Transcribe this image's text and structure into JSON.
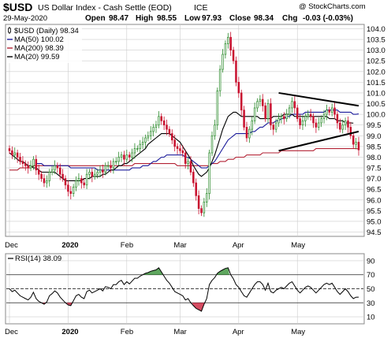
{
  "header": {
    "symbol": "$USD",
    "name": "US Dollar Index - Cash Settle (EOD)",
    "exchange": "ICE",
    "watermark": "@ StockCharts.com",
    "date": "29-May-2020",
    "open_label": "Open",
    "open_value": "98.47",
    "high_label": "High",
    "high_value": "98.55",
    "low_label": "Low",
    "low_value": "97.93",
    "close_label": "Close",
    "close_value": "98.34",
    "chg_label": "Chg",
    "chg_value": "-0.03 (-0.03%)"
  },
  "legend": [
    {
      "text": "$USD (Daily) 98.34",
      "color": "#000000",
      "icon": "candle-icon"
    },
    {
      "text": "MA(50) 100.02",
      "color": "#1a1a9a",
      "icon": "line-icon"
    },
    {
      "text": "MA(200) 98.39",
      "color": "#b22234",
      "icon": "line-icon"
    },
    {
      "text": "MA(20) 99.59",
      "color": "#000000",
      "icon": "line-icon"
    }
  ],
  "rsi_legend": "RSI(14) 38.09",
  "colors": {
    "up": "#2a8a2a",
    "down": "#c8102e",
    "ma50": "#1a1a9a",
    "ma200": "#b22234",
    "ma20": "#000000",
    "rsi_fill_over": "#2a8a2a",
    "rsi_fill_under": "#c8102e",
    "grid": "#cccccc"
  },
  "chart_data": [
    {
      "type": "candlestick",
      "title": "$USD US Dollar Index - Cash Settle (EOD) ICE",
      "x_tick_labels": [
        "Dec",
        "2020",
        "Feb",
        "Mar",
        "Apr",
        "May"
      ],
      "y_tick_labels": [
        "104.0",
        "103.5",
        "103.0",
        "102.5",
        "102.0",
        "101.5",
        "101.0",
        "100.5",
        "100.0",
        "99.5",
        "99.0",
        "98.5",
        "98.0",
        "97.5",
        "97.0",
        "96.5",
        "96.0",
        "95.5",
        "95.0",
        "94.5"
      ],
      "ylim": [
        94.3,
        104.2
      ],
      "grid": true,
      "series": [
        {
          "name": "$USD (Daily)",
          "kind": "candles",
          "close": [
            98.3,
            98.1,
            98.2,
            98.0,
            97.8,
            97.7,
            97.6,
            97.5,
            97.6,
            97.9,
            97.4,
            97.2,
            97.0,
            96.8,
            96.9,
            97.3,
            97.4,
            97.6,
            97.5,
            97.2,
            97.0,
            96.7,
            96.4,
            96.3,
            96.6,
            96.9,
            97.0,
            96.8,
            96.7,
            97.2,
            97.3,
            97.1,
            97.2,
            97.3,
            97.4,
            97.3,
            97.6,
            97.6,
            97.5,
            97.8,
            97.8,
            98.0,
            98.1,
            97.9,
            98.1,
            98.0,
            98.2,
            98.4,
            98.4,
            98.6,
            98.7,
            98.9,
            99.0,
            99.2,
            99.4,
            99.5,
            99.9,
            99.7,
            99.5,
            99.3,
            99.1,
            98.8,
            98.5,
            98.4,
            98.3,
            98.2,
            97.7,
            97.8,
            97.3,
            96.8,
            96.2,
            95.6,
            95.4,
            95.9,
            96.3,
            98.2,
            99.0,
            99.5,
            101.1,
            102.1,
            102.8,
            103.3,
            103.6,
            103.0,
            102.5,
            101.5,
            101.0,
            100.2,
            99.4,
            98.9,
            99.3,
            99.7,
            100.3,
            100.6,
            100.7,
            100.4,
            99.8,
            100.5,
            99.5,
            99.3,
            99.6,
            99.8,
            99.9,
            99.8,
            100.0,
            100.3,
            100.6,
            100.3,
            99.8,
            99.5,
            99.7,
            99.9,
            100.0,
            99.9,
            99.6,
            99.4,
            99.6,
            99.8,
            100.0,
            100.2,
            100.1,
            100.3,
            100.0,
            99.6,
            99.3,
            99.5,
            99.7,
            99.4,
            99.0,
            98.6,
            98.7,
            98.34
          ]
        },
        {
          "name": "MA(50)",
          "kind": "line",
          "color": "#1a1a9a",
          "values": [
            null,
            null,
            null,
            null,
            null,
            null,
            null,
            null,
            null,
            null,
            97.7,
            97.7,
            97.7,
            97.6,
            97.6,
            97.6,
            97.6,
            97.6,
            97.6,
            97.6,
            97.6,
            97.6,
            97.6,
            97.5,
            97.5,
            97.5,
            97.5,
            97.5,
            97.5,
            97.5,
            97.5,
            97.5,
            97.5,
            97.4,
            97.4,
            97.4,
            97.4,
            97.4,
            97.4,
            97.4,
            97.4,
            97.4,
            97.4,
            97.4,
            97.4,
            97.4,
            97.5,
            97.5,
            97.5,
            97.5,
            97.6,
            97.6,
            97.6,
            97.7,
            97.8,
            97.8,
            97.9,
            98.0,
            98.0,
            98.1,
            98.1,
            98.1,
            98.1,
            98.1,
            98.1,
            98.1,
            98.0,
            98.0,
            97.9,
            97.8,
            97.7,
            97.6,
            97.5,
            97.5,
            97.5,
            97.6,
            97.7,
            97.8,
            98.0,
            98.2,
            98.4,
            98.6,
            98.8,
            98.9,
            99.0,
            99.1,
            99.1,
            99.1,
            99.1,
            99.1,
            99.1,
            99.2,
            99.2,
            99.3,
            99.4,
            99.4,
            99.5,
            99.6,
            99.6,
            99.6,
            99.7,
            99.7,
            99.8,
            99.8,
            99.9,
            99.9,
            100.0,
            100.0,
            100.0,
            100.0,
            100.0,
            100.1,
            100.1,
            100.1,
            100.1,
            100.1,
            100.1,
            100.1,
            100.1,
            100.2,
            100.2,
            100.2,
            100.2,
            100.2,
            100.1,
            100.1,
            100.1,
            100.1,
            100.1,
            100.0,
            100.0,
            100.02
          ]
        },
        {
          "name": "MA(200)",
          "kind": "line",
          "color": "#b22234",
          "values": [
            97.4,
            97.4,
            97.4,
            97.4,
            97.5,
            97.5,
            97.5,
            97.5,
            97.5,
            97.6,
            97.6,
            97.6,
            97.6,
            97.6,
            97.6,
            97.6,
            97.6,
            97.6,
            97.6,
            97.6,
            97.6,
            97.6,
            97.6,
            97.6,
            97.6,
            97.6,
            97.6,
            97.6,
            97.6,
            97.6,
            97.6,
            97.6,
            97.6,
            97.6,
            97.6,
            97.6,
            97.6,
            97.6,
            97.6,
            97.6,
            97.6,
            97.6,
            97.6,
            97.6,
            97.6,
            97.6,
            97.6,
            97.7,
            97.7,
            97.7,
            97.7,
            97.7,
            97.7,
            97.7,
            97.7,
            97.7,
            97.7,
            97.7,
            97.7,
            97.7,
            97.7,
            97.7,
            97.7,
            97.6,
            97.6,
            97.6,
            97.6,
            97.6,
            97.6,
            97.6,
            97.6,
            97.6,
            97.6,
            97.6,
            97.6,
            97.6,
            97.7,
            97.7,
            97.7,
            97.8,
            97.8,
            97.8,
            97.9,
            97.9,
            97.9,
            98.0,
            98.0,
            98.0,
            98.0,
            98.1,
            98.1,
            98.1,
            98.1,
            98.1,
            98.1,
            98.2,
            98.2,
            98.2,
            98.2,
            98.2,
            98.2,
            98.2,
            98.3,
            98.3,
            98.3,
            98.3,
            98.3,
            98.3,
            98.3,
            98.3,
            98.3,
            98.3,
            98.3,
            98.3,
            98.3,
            98.4,
            98.4,
            98.4,
            98.4,
            98.4,
            98.4,
            98.4,
            98.4,
            98.4,
            98.4,
            98.4,
            98.4,
            98.4,
            98.4,
            98.4,
            98.4,
            98.39
          ]
        },
        {
          "name": "MA(20)",
          "kind": "line",
          "color": "#000000",
          "values": [
            98.2,
            98.1,
            98.0,
            97.9,
            97.8,
            97.8,
            97.7,
            97.6,
            97.6,
            97.5,
            97.5,
            97.4,
            97.3,
            97.3,
            97.3,
            97.3,
            97.3,
            97.3,
            97.2,
            97.1,
            97.0,
            96.9,
            96.9,
            96.9,
            96.9,
            96.9,
            96.9,
            96.9,
            97.0,
            97.0,
            97.0,
            97.1,
            97.1,
            97.1,
            97.1,
            97.2,
            97.2,
            97.3,
            97.4,
            97.4,
            97.5,
            97.6,
            97.6,
            97.7,
            97.7,
            97.8,
            97.9,
            98.0,
            98.1,
            98.2,
            98.3,
            98.4,
            98.6,
            98.7,
            98.8,
            98.9,
            99.0,
            99.1,
            99.1,
            99.1,
            99.1,
            99.0,
            98.9,
            98.8,
            98.7,
            98.5,
            98.3,
            98.1,
            97.9,
            97.6,
            97.4,
            97.2,
            97.1,
            97.2,
            97.3,
            97.5,
            97.8,
            98.1,
            98.5,
            98.9,
            99.3,
            99.6,
            99.9,
            100.0,
            100.1,
            100.1,
            100.0,
            99.9,
            99.9,
            99.9,
            99.9,
            99.9,
            99.9,
            99.9,
            99.8,
            99.8,
            99.8,
            99.8,
            99.8,
            99.9,
            99.9,
            99.9,
            99.9,
            100.0,
            100.0,
            100.0,
            100.0,
            99.9,
            99.9,
            99.9,
            99.9,
            99.9,
            99.9,
            99.9,
            99.9,
            99.9,
            99.9,
            99.9,
            99.9,
            99.9,
            99.8,
            99.8,
            99.8,
            99.7,
            99.7,
            99.7,
            99.6,
            99.6,
            99.6,
            99.59
          ]
        }
      ],
      "trendlines": [
        {
          "name": "upper-trendline",
          "from": [
            101,
            101.0
          ],
          "to": [
            131,
            100.4
          ]
        },
        {
          "name": "lower-trendline",
          "from": [
            101,
            98.3
          ],
          "to": [
            131,
            99.2
          ]
        }
      ]
    },
    {
      "type": "line",
      "title": "RSI(14) 38.09",
      "y_tick_labels": [
        "90",
        "70",
        "50",
        "30",
        "10"
      ],
      "x_tick_labels": [
        "Dec",
        "2020",
        "Feb",
        "Mar",
        "Apr",
        "May"
      ],
      "ylim": [
        0,
        100
      ],
      "reference_lines": [
        70,
        50,
        30
      ],
      "grid": true,
      "series": [
        {
          "name": "RSI(14)",
          "values": [
            50,
            46,
            48,
            44,
            40,
            38,
            36,
            34,
            38,
            45,
            36,
            32,
            30,
            28,
            31,
            40,
            43,
            47,
            44,
            38,
            34,
            30,
            27,
            26,
            33,
            40,
            42,
            38,
            36,
            46,
            48,
            44,
            46,
            48,
            50,
            47,
            53,
            52,
            50,
            56,
            56,
            60,
            62,
            56,
            60,
            57,
            61,
            65,
            65,
            68,
            70,
            72,
            73,
            75,
            76,
            77,
            80,
            74,
            68,
            62,
            58,
            52,
            46,
            44,
            42,
            40,
            34,
            36,
            30,
            26,
            22,
            20,
            18,
            28,
            36,
            56,
            62,
            66,
            72,
            75,
            77,
            79,
            80,
            70,
            64,
            56,
            52,
            46,
            40,
            38,
            44,
            50,
            56,
            60,
            60,
            56,
            48,
            58,
            46,
            44,
            48,
            50,
            52,
            50,
            54,
            58,
            60,
            54,
            48,
            44,
            48,
            52,
            54,
            52,
            48,
            44,
            48,
            52,
            56,
            58,
            56,
            58,
            52,
            46,
            42,
            46,
            50,
            46,
            40,
            36,
            38,
            38.09
          ]
        }
      ]
    }
  ]
}
